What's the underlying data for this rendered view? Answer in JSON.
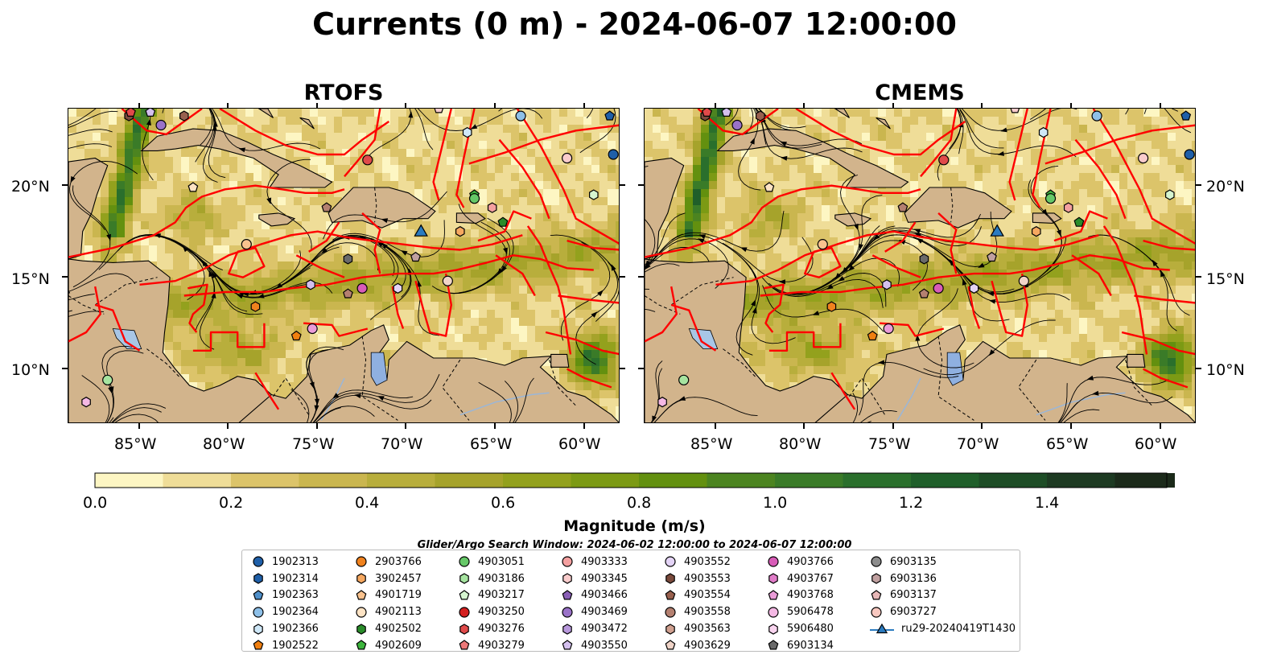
{
  "title": "Currents (0 m) - 2024-06-07 12:00:00",
  "panels": [
    {
      "title": "RTOFS"
    },
    {
      "title": "CMEMS"
    }
  ],
  "lat_labels": [
    "20°N",
    "15°N",
    "10°N"
  ],
  "lon_labels": [
    "85°W",
    "80°W",
    "75°W",
    "70°W",
    "65°W",
    "60°W"
  ],
  "map_extent": {
    "lon": [
      -89,
      -58
    ],
    "lat": [
      7,
      24.2
    ]
  },
  "colors": {
    "land": "#d2b48c",
    "water_low": "#fdf6c3",
    "water_high": "#1b2a1a",
    "eez_lines": "#ff0000",
    "streamlines": "#000000",
    "lakes": "#a8c6e6"
  },
  "colorbar": {
    "label": "Magnitude (m/s)",
    "ticks": [
      "0.0",
      "0.2",
      "0.4",
      "0.6",
      "0.8",
      "1.0",
      "1.2",
      "1.4"
    ],
    "range": [
      0,
      1.6
    ],
    "colors": [
      "#fdf6c3",
      "#efdd98",
      "#dcc46a",
      "#cab64f",
      "#b8ae3c",
      "#a6a32b",
      "#93a11d",
      "#7c9a14",
      "#63900f",
      "#4c8420",
      "#3a7b28",
      "#2a6f2c",
      "#1f5f2a",
      "#1d4d26",
      "#1d3a22",
      "#1b2a1a"
    ]
  },
  "search_window": "Glider/Argo Search Window: 2024-06-02 12:00:00 to 2024-06-07 12:00:00",
  "legend": [
    [
      {
        "label": "1902313",
        "marker": "circle",
        "color": "#1f5fa8"
      },
      {
        "label": "1902314",
        "marker": "hexagon",
        "color": "#1f5fa8"
      },
      {
        "label": "1902363",
        "marker": "pentagon",
        "color": "#4f8fc9"
      },
      {
        "label": "1902364",
        "marker": "circle",
        "color": "#8ec0e8"
      },
      {
        "label": "1902366",
        "marker": "hexagon",
        "color": "#cfe8f8"
      },
      {
        "label": "1902522",
        "marker": "pentagon",
        "color": "#f07f10"
      }
    ],
    [
      {
        "label": "2903766",
        "marker": "circle",
        "color": "#f0821e"
      },
      {
        "label": "3902457",
        "marker": "hexagon",
        "color": "#f6a860"
      },
      {
        "label": "4901719",
        "marker": "pentagon",
        "color": "#f9c28e"
      },
      {
        "label": "4902113",
        "marker": "circle",
        "color": "#fde3c4"
      },
      {
        "label": "4902502",
        "marker": "hexagon",
        "color": "#2a8c2a"
      },
      {
        "label": "4902609",
        "marker": "pentagon",
        "color": "#3cb43c"
      }
    ],
    [
      {
        "label": "4903051",
        "marker": "circle",
        "color": "#66c868"
      },
      {
        "label": "4903186",
        "marker": "hexagon",
        "color": "#a6e4a0"
      },
      {
        "label": "4903217",
        "marker": "pentagon",
        "color": "#d6f5d0"
      },
      {
        "label": "4903250",
        "marker": "circle",
        "color": "#d42020"
      },
      {
        "label": "4903276",
        "marker": "hexagon",
        "color": "#e04a4a"
      },
      {
        "label": "4903279",
        "marker": "pentagon",
        "color": "#ec7878"
      }
    ],
    [
      {
        "label": "4903333",
        "marker": "circle",
        "color": "#f4a0a0"
      },
      {
        "label": "4903345",
        "marker": "hexagon",
        "color": "#f9cccc"
      },
      {
        "label": "4903466",
        "marker": "pentagon",
        "color": "#8a5fb6"
      },
      {
        "label": "4903469",
        "marker": "circle",
        "color": "#9a72c8"
      },
      {
        "label": "4903472",
        "marker": "hexagon",
        "color": "#b898dc"
      },
      {
        "label": "4903550",
        "marker": "pentagon",
        "color": "#d4c0ee"
      }
    ],
    [
      {
        "label": "4903552",
        "marker": "circle",
        "color": "#e4d4f6"
      },
      {
        "label": "4903553",
        "marker": "hexagon",
        "color": "#7a4a3c"
      },
      {
        "label": "4903554",
        "marker": "pentagon",
        "color": "#98604e"
      },
      {
        "label": "4903558",
        "marker": "circle",
        "color": "#b48070"
      },
      {
        "label": "4903563",
        "marker": "hexagon",
        "color": "#d0a090"
      },
      {
        "label": "4903629",
        "marker": "pentagon",
        "color": "#f0d4c8"
      }
    ],
    [
      {
        "label": "4903766",
        "marker": "circle",
        "color": "#d85cb8"
      },
      {
        "label": "4903767",
        "marker": "hexagon",
        "color": "#e07cc8"
      },
      {
        "label": "4903768",
        "marker": "pentagon",
        "color": "#ea9cd8"
      },
      {
        "label": "5906478",
        "marker": "circle",
        "color": "#f4b8e4"
      },
      {
        "label": "5906480",
        "marker": "hexagon",
        "color": "#f9d4ef"
      },
      {
        "label": "6903134",
        "marker": "pentagon",
        "color": "#6a6a6a"
      }
    ],
    [
      {
        "label": "6903135",
        "marker": "circle",
        "color": "#8c8c8c"
      },
      {
        "label": "6903136",
        "marker": "hexagon",
        "color": "#c0a0a0"
      },
      {
        "label": "6903137",
        "marker": "pentagon",
        "color": "#e8b8b8"
      },
      {
        "label": "6903727",
        "marker": "circle",
        "color": "#f8c8c0"
      },
      {
        "label": "ru29-20240419T1430",
        "marker": "triangle",
        "color": "#2b7bc0"
      }
    ]
  ],
  "glider": {
    "label": "ru29-20240419T1430",
    "lon": -69.2,
    "lat": 17.5
  },
  "floats": [
    {
      "lon": -86.8,
      "lat": 9.4,
      "color": "#a6e4a0"
    },
    {
      "lon": -88.0,
      "lat": 8.2,
      "color": "#f4b8e4"
    },
    {
      "lon": -82.0,
      "lat": 19.9,
      "color": "#fde3c4"
    },
    {
      "lon": -79.0,
      "lat": 16.8,
      "color": "#f9c28e"
    },
    {
      "lon": -78.5,
      "lat": 13.4,
      "color": "#f0821e"
    },
    {
      "lon": -76.2,
      "lat": 11.8,
      "color": "#f07f10"
    },
    {
      "lon": -75.3,
      "lat": 12.2,
      "color": "#ea9cd8"
    },
    {
      "lon": -75.4,
      "lat": 14.6,
      "color": "#d4c0ee"
    },
    {
      "lon": -73.3,
      "lat": 14.1,
      "color": "#b48070"
    },
    {
      "lon": -72.5,
      "lat": 14.4,
      "color": "#d85cb8"
    },
    {
      "lon": -73.3,
      "lat": 16.0,
      "color": "#6a6a6a"
    },
    {
      "lon": -74.5,
      "lat": 18.8,
      "color": "#b48070"
    },
    {
      "lon": -72.2,
      "lat": 21.4,
      "color": "#e04a4a"
    },
    {
      "lon": -70.5,
      "lat": 14.4,
      "color": "#e4d4f6"
    },
    {
      "lon": -69.5,
      "lat": 16.1,
      "color": "#c0a0a0"
    },
    {
      "lon": -67.7,
      "lat": 14.8,
      "color": "#f0d4c8"
    },
    {
      "lon": -67.0,
      "lat": 17.5,
      "color": "#f6a860"
    },
    {
      "lon": -66.2,
      "lat": 19.5,
      "color": "#3cb43c"
    },
    {
      "lon": -66.2,
      "lat": 19.3,
      "color": "#66c868"
    },
    {
      "lon": -65.2,
      "lat": 18.8,
      "color": "#f4a0a0"
    },
    {
      "lon": -64.6,
      "lat": 18.0,
      "color": "#2a8c2a"
    },
    {
      "lon": -63.6,
      "lat": 23.8,
      "color": "#8ec0e8"
    },
    {
      "lon": -66.6,
      "lat": 22.9,
      "color": "#cfe8f8"
    },
    {
      "lon": -68.2,
      "lat": 24.2,
      "color": "#f9cccc"
    },
    {
      "lon": -61.0,
      "lat": 21.5,
      "color": "#f9cccc"
    },
    {
      "lon": -59.5,
      "lat": 19.5,
      "color": "#d6f5d0"
    },
    {
      "lon": -58.6,
      "lat": 23.8,
      "color": "#1f5fa8"
    },
    {
      "lon": -58.4,
      "lat": 21.7,
      "color": "#1f5fa8"
    },
    {
      "lon": -85.6,
      "lat": 23.8,
      "color": "#7a4a3c"
    },
    {
      "lon": -84.4,
      "lat": 24.0,
      "color": "#d4c0ee"
    },
    {
      "lon": -83.8,
      "lat": 23.3,
      "color": "#9a72c8"
    },
    {
      "lon": -82.5,
      "lat": 23.8,
      "color": "#98604e"
    },
    {
      "lon": -85.5,
      "lat": 24.0,
      "color": "#e04a4a"
    }
  ]
}
